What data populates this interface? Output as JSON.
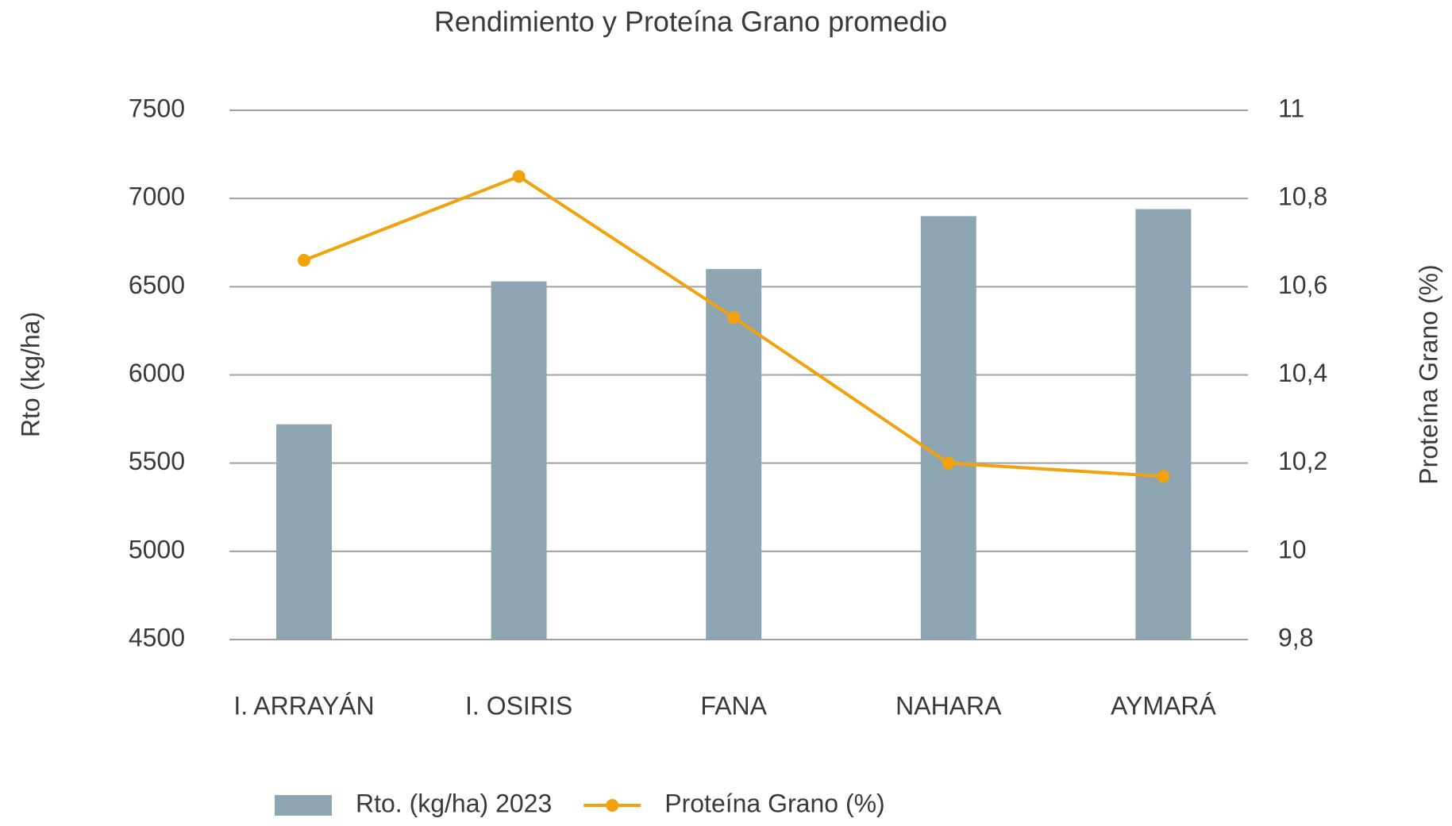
{
  "chart_data": {
    "type": "bar_line",
    "title": "Rendimiento y Proteína Grano promedio",
    "ylabel": "Rto (kg/ha)",
    "y2label": "Proteína Grano (%)",
    "categories": [
      "I. ARRAYÁN",
      "I. OSIRIS",
      "FANA",
      "NAHARA",
      "AYMARÁ"
    ],
    "series": [
      {
        "name": "Rto. (kg/ha) 2023",
        "type": "bar",
        "color": "#8ea5b2",
        "values": [
          5720,
          6530,
          6600,
          6900,
          6940
        ]
      },
      {
        "name": "Proteína Grano  (%)",
        "type": "line",
        "axis": "y2",
        "color": "#f2a20c",
        "values": [
          10.66,
          10.85,
          10.53,
          10.2,
          10.17
        ]
      }
    ],
    "ylim": [
      4500,
      7500
    ],
    "yticks": [
      4500,
      5000,
      5500,
      6000,
      6500,
      7000,
      7500
    ],
    "y2lim": [
      9.8,
      11
    ],
    "y2ticks": [
      {
        "value": 9.8,
        "label": "9,8"
      },
      10,
      {
        "value": 10.2,
        "label": "10,2"
      },
      {
        "value": 10.4,
        "label": "10,4"
      },
      {
        "value": 10.6,
        "label": "10,6"
      },
      {
        "value": 10.8,
        "label": "10,8"
      },
      11
    ],
    "grid": true,
    "legend": "bottom"
  }
}
